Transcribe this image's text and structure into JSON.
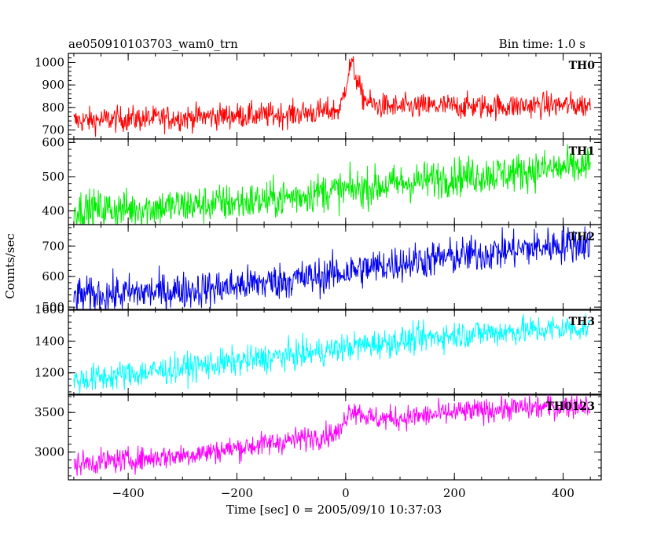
{
  "chart_data": {
    "type": "line",
    "title": "ae050910103703_wam0_trn",
    "subtitle": "Bin time: 1.0 s",
    "xlabel": "Time [sec] 0 = 2005/09/10 10:37:03",
    "ylabel": "Counts/sec",
    "xlim": [
      -510,
      470
    ],
    "xticks": [
      -400,
      -200,
      0,
      200,
      400
    ],
    "grid": false,
    "panels": [
      {
        "name": "TH0",
        "color": "#ff0000",
        "ylim": [
          660,
          1040
        ],
        "yticks": [
          700,
          800,
          900,
          1000
        ],
        "x": [
          -500,
          -450,
          -400,
          -350,
          -300,
          -250,
          -200,
          -150,
          -100,
          -50,
          -10,
          0,
          10,
          20,
          30,
          50,
          100,
          150,
          200,
          250,
          300,
          350,
          400,
          450
        ],
        "y": [
          740,
          745,
          750,
          750,
          755,
          760,
          765,
          765,
          770,
          780,
          790,
          900,
          1000,
          930,
          850,
          810,
          800,
          805,
          805,
          805,
          805,
          810,
          810,
          810
        ]
      },
      {
        "name": "TH1",
        "color": "#00ee00",
        "ylim": [
          360,
          610
        ],
        "yticks": [
          400,
          500,
          600
        ],
        "x": [
          -500,
          -450,
          -400,
          -350,
          -300,
          -250,
          -200,
          -150,
          -100,
          -50,
          0,
          50,
          100,
          150,
          200,
          250,
          300,
          350,
          400,
          450
        ],
        "y": [
          405,
          405,
          405,
          410,
          415,
          420,
          425,
          430,
          440,
          455,
          460,
          470,
          480,
          490,
          500,
          505,
          510,
          520,
          525,
          530
        ]
      },
      {
        "name": "TH2",
        "color": "#0000ee",
        "ylim": [
          490,
          770
        ],
        "yticks": [
          500,
          600,
          700
        ],
        "x": [
          -500,
          -450,
          -400,
          -350,
          -300,
          -250,
          -200,
          -150,
          -100,
          -50,
          0,
          50,
          100,
          150,
          200,
          250,
          300,
          350,
          400,
          450
        ],
        "y": [
          535,
          540,
          545,
          550,
          555,
          560,
          570,
          580,
          590,
          600,
          615,
          630,
          645,
          655,
          665,
          675,
          685,
          695,
          705,
          710
        ]
      },
      {
        "name": "TH3",
        "color": "#00ffff",
        "ylim": [
          1060,
          1600
        ],
        "yticks": [
          1200,
          1400,
          1600
        ],
        "x": [
          -500,
          -450,
          -400,
          -350,
          -300,
          -250,
          -200,
          -150,
          -100,
          -50,
          0,
          50,
          100,
          150,
          200,
          250,
          300,
          350,
          400,
          450
        ],
        "y": [
          1150,
          1170,
          1190,
          1210,
          1230,
          1250,
          1270,
          1290,
          1310,
          1330,
          1360,
          1380,
          1400,
          1420,
          1440,
          1450,
          1460,
          1470,
          1480,
          1490
        ]
      },
      {
        "name": "TH0123",
        "color": "#ff00ff",
        "ylim": [
          2650,
          3730
        ],
        "yticks": [
          3000,
          3500
        ],
        "x": [
          -500,
          -450,
          -400,
          -350,
          -300,
          -250,
          -200,
          -150,
          -100,
          -50,
          -10,
          0,
          10,
          50,
          100,
          150,
          200,
          250,
          300,
          350,
          400,
          450
        ],
        "y": [
          2850,
          2880,
          2900,
          2930,
          2960,
          3000,
          3050,
          3100,
          3150,
          3200,
          3250,
          3450,
          3550,
          3420,
          3430,
          3460,
          3500,
          3520,
          3550,
          3560,
          3580,
          3600
        ]
      }
    ]
  }
}
